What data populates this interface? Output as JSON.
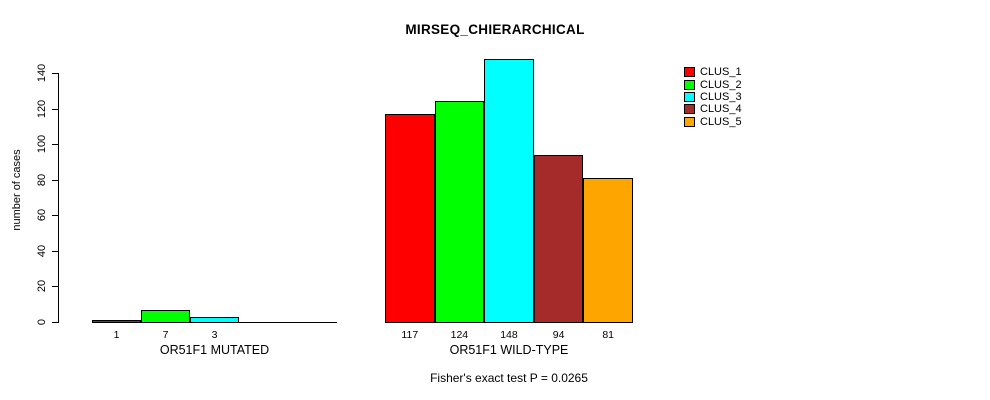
{
  "chart_data": {
    "type": "bar",
    "title": "MIRSEQ_CHIERARCHICAL",
    "xlabel": "",
    "ylabel": "number of cases",
    "ylim": [
      0,
      140
    ],
    "yticks": [
      0,
      20,
      40,
      60,
      80,
      100,
      120,
      140
    ],
    "grid": false,
    "legend_position": "top-right",
    "legend": [
      {
        "label": "CLUS_1",
        "color": "#FF0000"
      },
      {
        "label": "CLUS_2",
        "color": "#00FF00"
      },
      {
        "label": "CLUS_3",
        "color": "#00FFFF"
      },
      {
        "label": "CLUS_4",
        "color": "#A52A2A"
      },
      {
        "label": "CLUS_5",
        "color": "#FFA500"
      }
    ],
    "groups": [
      {
        "label": "OR51F1 MUTATED",
        "values": [
          1,
          7,
          3,
          0,
          0
        ],
        "bar_labels": [
          "1",
          "7",
          "3",
          "",
          ""
        ]
      },
      {
        "label": "OR51F1 WILD-TYPE",
        "values": [
          117,
          124,
          148,
          94,
          81
        ],
        "bar_labels": [
          "117",
          "124",
          "148",
          "94",
          "81"
        ]
      }
    ],
    "annotation": "Fisher's exact test P = 0.0265"
  }
}
